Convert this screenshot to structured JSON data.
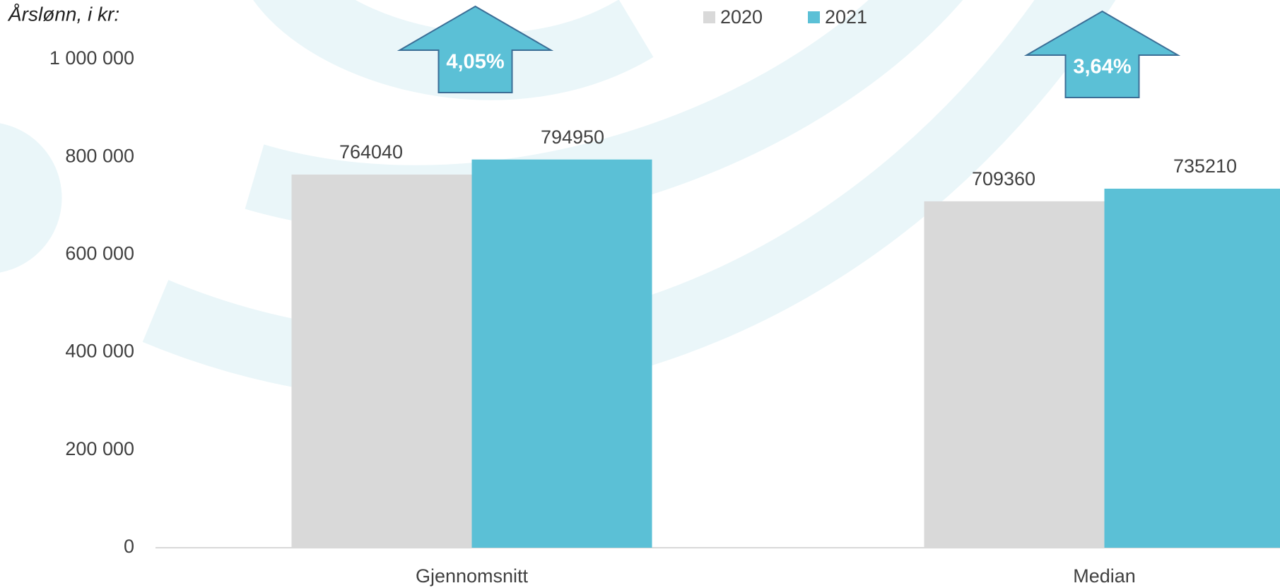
{
  "chart_data": {
    "type": "bar",
    "title": "Årslønn, i kr:",
    "categories": [
      "Gjennomsnitt",
      "Median"
    ],
    "series": [
      {
        "name": "2020",
        "color": "#d9d9d9",
        "values": [
          764040,
          709360
        ]
      },
      {
        "name": "2021",
        "color": "#5bc0d6",
        "values": [
          794950,
          735210
        ]
      }
    ],
    "annotations": [
      "4,05%",
      "3,64%"
    ],
    "ylim": [
      0,
      1000000
    ],
    "yticks": [
      0,
      {
        "value": 200000,
        "label": "200 000"
      },
      {
        "value": 400000,
        "label": "400 000"
      },
      {
        "value": 600000,
        "label": "600 000"
      },
      {
        "value": 800000,
        "label": "800 000"
      },
      {
        "value": 1000000,
        "label": "1 000 000"
      }
    ],
    "grid": false
  }
}
